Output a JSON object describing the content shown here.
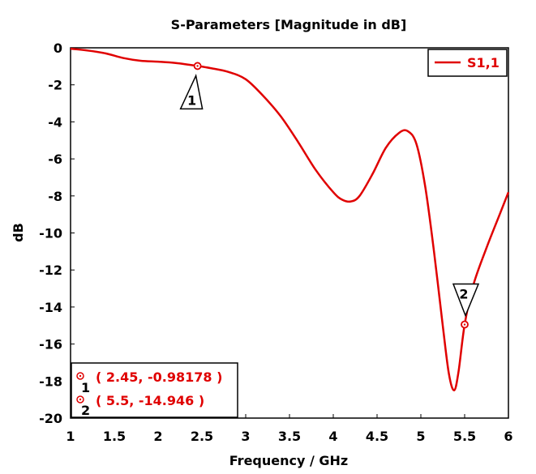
{
  "chart_data": {
    "type": "line",
    "title": "S-Parameters [Magnitude in dB]",
    "xlabel": "Frequency / GHz",
    "ylabel": "dB",
    "xlim": [
      1,
      6
    ],
    "ylim": [
      -20,
      0
    ],
    "x_ticks": [
      1,
      1.5,
      2,
      2.5,
      3,
      3.5,
      4,
      4.5,
      5,
      5.5,
      6
    ],
    "x_tick_labels": [
      "1",
      "1.5",
      "2",
      "2.5",
      "3",
      "3.5",
      "4",
      "4.5",
      "5",
      "5.5",
      "6"
    ],
    "y_ticks": [
      0,
      -2,
      -4,
      -6,
      -8,
      -10,
      -12,
      -14,
      -16,
      -18,
      -20
    ],
    "y_tick_labels": [
      "0",
      "-2",
      "-4",
      "-6",
      "-8",
      "-10",
      "-12",
      "-14",
      "-16",
      "-18",
      "-20"
    ],
    "grid": false,
    "legend_position": "top-right",
    "series": [
      {
        "name": "S1,1",
        "color": "#e00000",
        "x": [
          1.0,
          1.2,
          1.4,
          1.6,
          1.8,
          2.0,
          2.2,
          2.45,
          2.6,
          2.8,
          3.0,
          3.2,
          3.4,
          3.6,
          3.8,
          4.0,
          4.1,
          4.2,
          4.3,
          4.45,
          4.6,
          4.75,
          4.85,
          4.95,
          5.05,
          5.15,
          5.25,
          5.32,
          5.38,
          5.43,
          5.5,
          5.6,
          5.75,
          5.9,
          6.0
        ],
        "y": [
          -0.05,
          -0.15,
          -0.3,
          -0.55,
          -0.7,
          -0.75,
          -0.82,
          -0.98,
          -1.1,
          -1.3,
          -1.7,
          -2.6,
          -3.7,
          -5.1,
          -6.6,
          -7.8,
          -8.2,
          -8.3,
          -8.0,
          -6.8,
          -5.4,
          -4.6,
          -4.5,
          -5.2,
          -7.5,
          -11.0,
          -15.0,
          -17.6,
          -18.5,
          -17.5,
          -14.95,
          -12.8,
          -10.8,
          -9.0,
          -7.8
        ]
      }
    ],
    "markers": [
      {
        "id": "1",
        "x": 2.45,
        "y": -0.98178,
        "readout": "( 2.45, -0.98178 )"
      },
      {
        "id": "2",
        "x": 5.5,
        "y": -14.946,
        "readout": "( 5.5, -14.946 )"
      }
    ]
  }
}
